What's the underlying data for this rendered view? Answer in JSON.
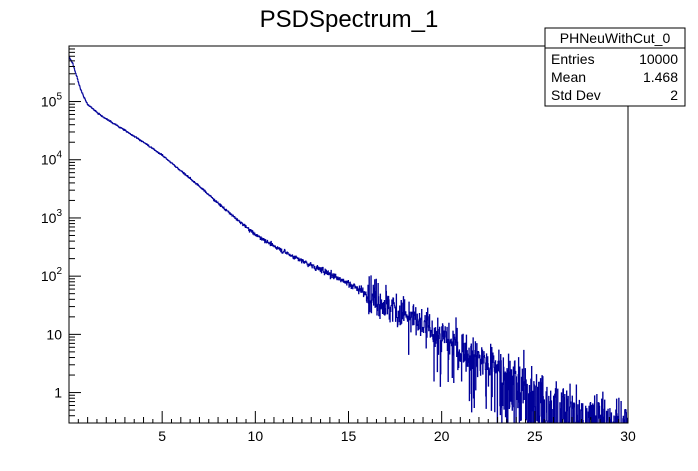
{
  "chart_data": {
    "type": "histogram",
    "title": "PSDSpectrum_1",
    "xlabel": "",
    "ylabel": "",
    "xlim": [
      0,
      30
    ],
    "ylim": [
      0.3,
      900000
    ],
    "y_scale": "log",
    "x_ticks": [
      5,
      10,
      15,
      20,
      25,
      30
    ],
    "x_tick_labels": [
      "5",
      "10",
      "15",
      "20",
      "25",
      "30"
    ],
    "y_ticks": [
      {
        "value": 1,
        "base": "1",
        "exp": ""
      },
      {
        "value": 10,
        "base": "10",
        "exp": ""
      },
      {
        "value": 100,
        "base": "10",
        "exp": "2"
      },
      {
        "value": 1000,
        "base": "10",
        "exp": "3"
      },
      {
        "value": 10000,
        "base": "10",
        "exp": "4"
      },
      {
        "value": 100000,
        "base": "10",
        "exp": "5"
      }
    ],
    "grid": false,
    "line_color": "#000099",
    "series": [
      {
        "x": [
          0.0,
          0.2,
          0.4,
          0.6,
          0.8,
          1.0,
          1.5,
          2.0,
          3.0,
          4.0,
          5.0,
          6.0,
          7.0,
          8.0,
          9.0,
          10.0,
          11.0,
          12.0,
          13.0,
          14.0,
          15.0,
          16.0,
          17.0,
          18.0,
          19.0,
          20.0,
          21.0,
          22.0,
          23.0,
          24.0,
          25.0,
          26.0,
          27.0,
          28.0,
          29.0,
          30.0
        ],
        "y": [
          600000,
          450000,
          280000,
          170000,
          120000,
          90000,
          65000,
          50000,
          32000,
          20000,
          12000,
          6500,
          3500,
          1800,
          950,
          520,
          330,
          220,
          155,
          110,
          75,
          50,
          33,
          22,
          14,
          9,
          6,
          4,
          2.8,
          1.9,
          1.3,
          0.9,
          0.7,
          0.55,
          0.45,
          0.4
        ]
      }
    ],
    "stats_box": {
      "name": "PHNeuWithCut_0",
      "rows": [
        {
          "label": "Entries",
          "value": "10000"
        },
        {
          "label": "Mean",
          "value": "1.468"
        },
        {
          "label": "Std Dev",
          "value": "2"
        }
      ]
    }
  }
}
